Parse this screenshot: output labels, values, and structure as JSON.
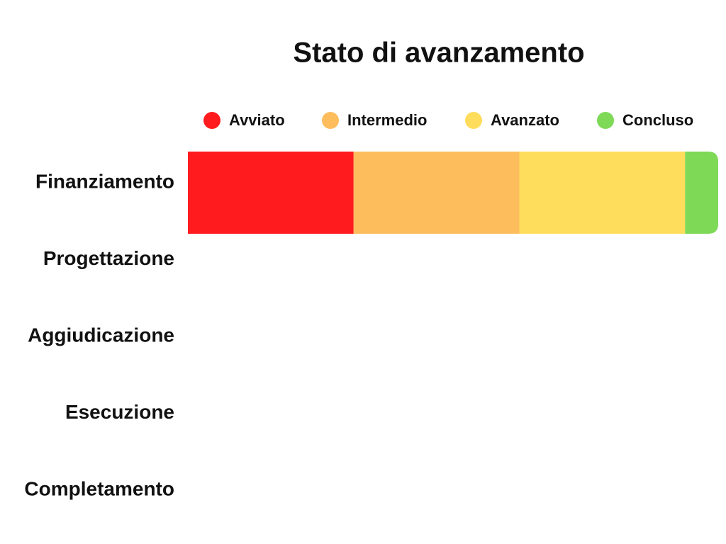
{
  "chart_data": {
    "type": "stacked-bar-horizontal",
    "title": "Stato di avanzamento",
    "categories": [
      "Finanziamento",
      "Progettazione",
      "Aggiudicazione",
      "Esecuzione",
      "Completamento"
    ],
    "series": [
      {
        "name": "Avviato",
        "color": "#ff1b1e",
        "values": [
          5,
          null,
          null,
          null,
          null
        ]
      },
      {
        "name": "Intermedio",
        "color": "#fdbd5d",
        "values": [
          5,
          null,
          null,
          null,
          null
        ]
      },
      {
        "name": "Avanzato",
        "color": "#ffdd5c",
        "values": [
          5,
          null,
          null,
          null,
          null
        ]
      },
      {
        "name": "Concluso",
        "color": "#7ed957",
        "values": [
          1,
          null,
          null,
          null,
          null
        ]
      }
    ],
    "xlim": [
      0,
      16
    ],
    "legend": "top"
  }
}
